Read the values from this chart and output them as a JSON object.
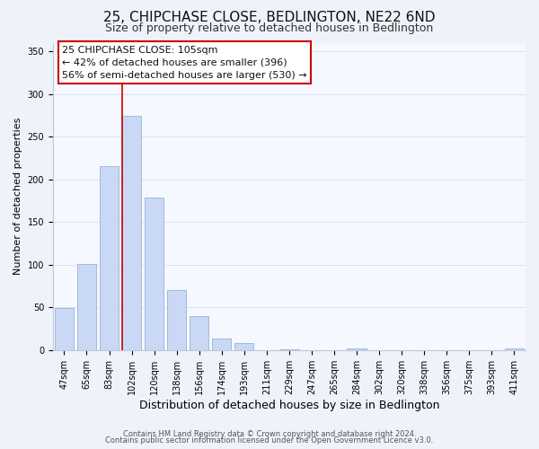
{
  "title": "25, CHIPCHASE CLOSE, BEDLINGTON, NE22 6ND",
  "subtitle": "Size of property relative to detached houses in Bedlington",
  "xlabel": "Distribution of detached houses by size in Bedlington",
  "ylabel": "Number of detached properties",
  "footer_line1": "Contains HM Land Registry data © Crown copyright and database right 2024.",
  "footer_line2": "Contains public sector information licensed under the Open Government Licence v3.0.",
  "bar_labels": [
    "47sqm",
    "65sqm",
    "83sqm",
    "102sqm",
    "120sqm",
    "138sqm",
    "156sqm",
    "174sqm",
    "193sqm",
    "211sqm",
    "229sqm",
    "247sqm",
    "265sqm",
    "284sqm",
    "302sqm",
    "320sqm",
    "338sqm",
    "356sqm",
    "375sqm",
    "393sqm",
    "411sqm"
  ],
  "bar_values": [
    49,
    101,
    215,
    274,
    179,
    70,
    40,
    14,
    8,
    0,
    1,
    0,
    0,
    2,
    0,
    0,
    0,
    0,
    0,
    0,
    2
  ],
  "bar_color": "#c9d9f5",
  "bar_edge_color": "#9ab0d4",
  "ann_line1": "25 CHIPCHASE CLOSE: 105sqm",
  "ann_line2": "← 42% of detached houses are smaller (396)",
  "ann_line3": "56% of semi-detached houses are larger (530) →",
  "vline_x_index": 3,
  "vline_color": "#cc0000",
  "ylim": [
    0,
    360
  ],
  "yticks": [
    0,
    50,
    100,
    150,
    200,
    250,
    300,
    350
  ],
  "grid_color": "#d8e4f0",
  "background_color": "#eef2fb",
  "plot_bg_color": "#f5f8ff",
  "title_fontsize": 11,
  "subtitle_fontsize": 9,
  "xlabel_fontsize": 9,
  "ylabel_fontsize": 8,
  "tick_fontsize": 7,
  "ann_fontsize": 8,
  "footer_fontsize": 6
}
